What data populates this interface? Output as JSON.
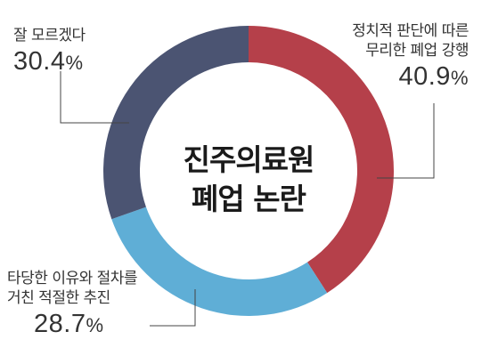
{
  "chart_data": {
    "type": "pie",
    "donut": true,
    "center_label": [
      "진주의료원",
      "폐업 논란"
    ],
    "categories": [
      [
        "정치적 판단에 따른",
        "무리한 폐업 강행"
      ],
      [
        "타당한 이유와 절차를",
        "거친 적절한 추진"
      ],
      [
        "잘 모르겠다"
      ]
    ],
    "values": [
      40.9,
      28.7,
      30.4
    ],
    "value_unit": "%",
    "colors": [
      "#b5404a",
      "#5faed6",
      "#4b5472"
    ],
    "legend": "none"
  }
}
